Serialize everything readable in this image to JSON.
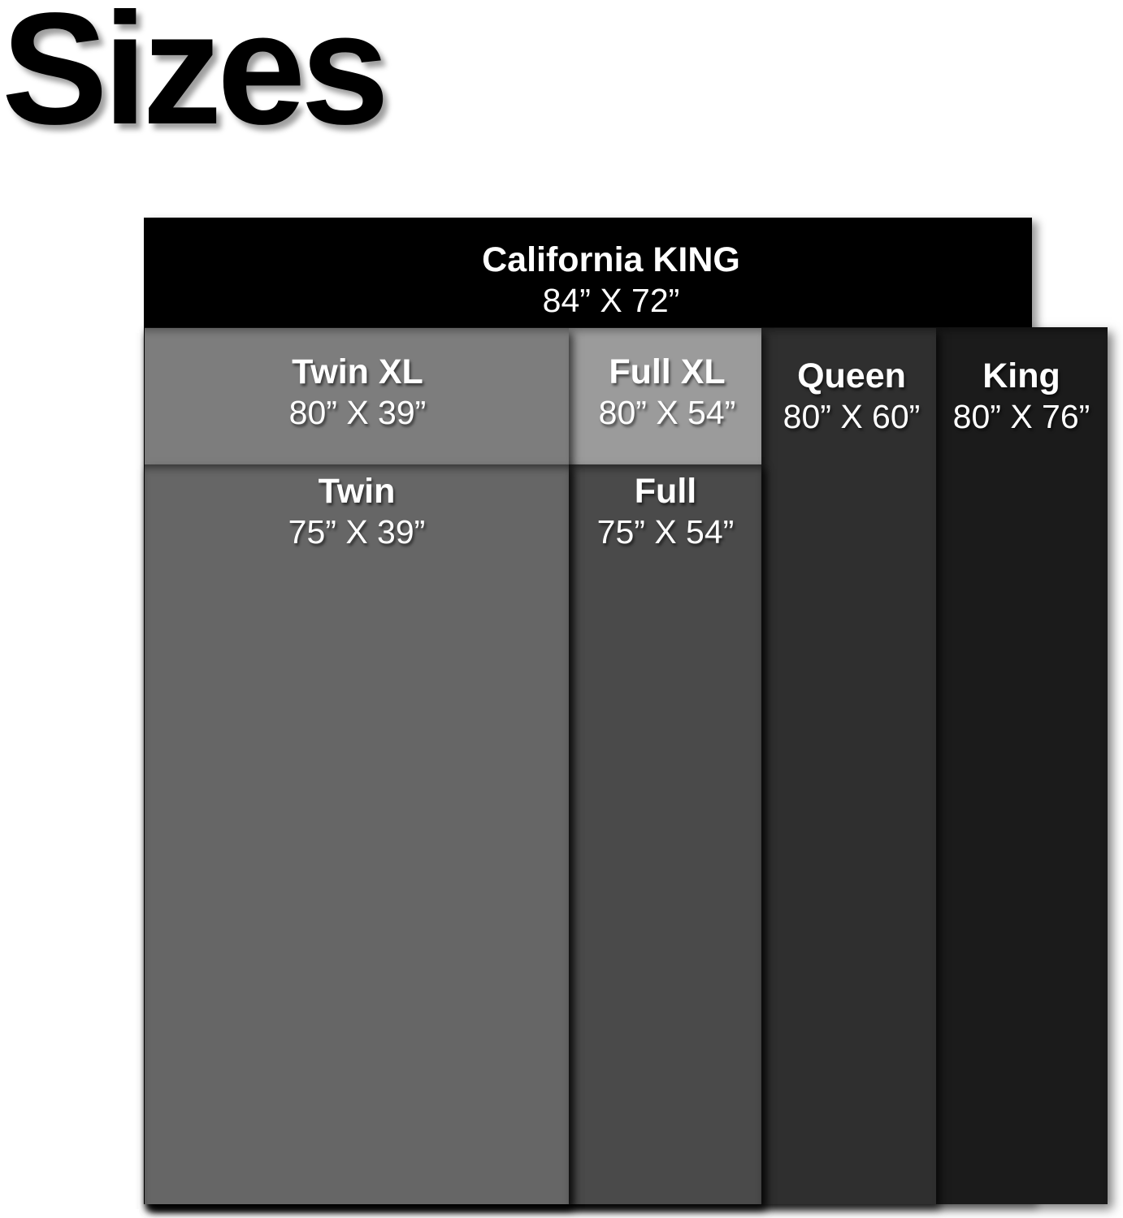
{
  "title": "Sizes",
  "diagram": {
    "description": "Layered mattress size comparison",
    "background_color": "#ffffff",
    "text_color": "#ffffff",
    "sizes": {
      "cal_king": {
        "name": "California KING",
        "dims": "84” X 72”",
        "length_in": 84,
        "width_in": 72,
        "color": "#000000"
      },
      "twin_xl": {
        "name": "Twin XL",
        "dims": "80” X 39”",
        "length_in": 80,
        "width_in": 39,
        "color": "#7d7d7d"
      },
      "full_xl": {
        "name": "Full XL",
        "dims": "80” X 54”",
        "length_in": 80,
        "width_in": 54,
        "color": "#9b9b9b"
      },
      "queen": {
        "name": "Queen",
        "dims": "80” X 60”",
        "length_in": 80,
        "width_in": 60,
        "color": "#2f2f2f"
      },
      "king": {
        "name": "King",
        "dims": "80” X 76”",
        "length_in": 80,
        "width_in": 76,
        "color": "#1b1b1b"
      },
      "twin": {
        "name": "Twin",
        "dims": "75” X 39”",
        "length_in": 75,
        "width_in": 39,
        "color": "#666666"
      },
      "full": {
        "name": "Full",
        "dims": "75” X 54”",
        "length_in": 75,
        "width_in": 54,
        "color": "#4a4a4a"
      }
    }
  }
}
